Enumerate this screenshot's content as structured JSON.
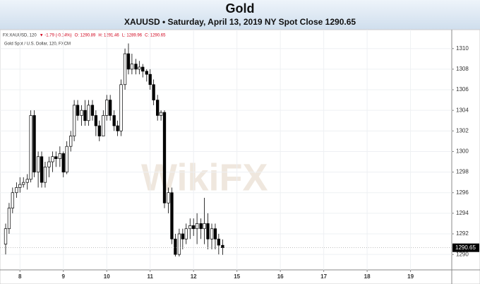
{
  "chart_data": {
    "type": "candlestick",
    "title": "Gold",
    "subtitle": "XAUUSD • Saturday, April 13, 2019 NY Spot Close 1290.65",
    "info": [
      "FX:XAUUSD, 120",
      "▼ -1.79 (-0.14%)",
      "O: 1290.89",
      "H: 1291.46",
      "L: 1289.96",
      "C: 1290.65"
    ],
    "legend": "Gold Spot / U.S. Dollar, 120, FXCM",
    "watermark": "WikiFX",
    "up_color": "#ffffff",
    "down_color": "#000000",
    "edge_color": "#000000",
    "grid": true,
    "last_price": 1290.65,
    "xlim": [
      -0.46,
      9.95
    ],
    "xticks": [
      {
        "value": 0,
        "label": "8"
      },
      {
        "value": 1,
        "label": "9"
      },
      {
        "value": 2,
        "label": "10"
      },
      {
        "value": 3,
        "label": "11"
      },
      {
        "value": 4,
        "label": "12"
      },
      {
        "value": 5,
        "label": "15"
      },
      {
        "value": 6,
        "label": "16"
      },
      {
        "value": 7,
        "label": "17"
      },
      {
        "value": 8,
        "label": "18"
      },
      {
        "value": 9,
        "label": "19"
      }
    ],
    "ylim": [
      1288.5,
      1311.7
    ],
    "yticks": [
      1290,
      1292,
      1294,
      1296,
      1298,
      1300,
      1302,
      1304,
      1306,
      1308,
      1310
    ],
    "x": [
      -0.33,
      -0.25,
      -0.17,
      -0.08,
      0,
      0.08,
      0.17,
      0.25,
      0.33,
      0.42,
      0.5,
      0.58,
      0.67,
      0.75,
      0.83,
      0.92,
      1,
      1.08,
      1.17,
      1.25,
      1.33,
      1.42,
      1.5,
      1.58,
      1.67,
      1.75,
      1.83,
      1.92,
      2,
      2.08,
      2.17,
      2.25,
      2.33,
      2.42,
      2.5,
      2.58,
      2.67,
      2.75,
      2.83,
      2.92,
      3,
      3.08,
      3.17,
      3.25,
      3.33,
      3.42,
      3.5,
      3.58,
      3.67,
      3.75,
      3.83,
      3.92,
      4,
      4.08,
      4.17,
      4.25,
      4.33,
      4.42,
      4.5,
      4.58,
      4.67
    ],
    "open": [
      1291,
      1292.5,
      1294.5,
      1296,
      1296.5,
      1296.8,
      1297,
      1297.3,
      1303.5,
      1298,
      1299.5,
      1297,
      1298.5,
      1299,
      1299.5,
      1299.3,
      1299.8,
      1298,
      1300.5,
      1301.5,
      1304.5,
      1303.5,
      1304,
      1303,
      1304.5,
      1303.5,
      1302.5,
      1301.5,
      1303.5,
      1305,
      1303.5,
      1302.5,
      1302,
      1306.5,
      1309.5,
      1308,
      1308.5,
      1308,
      1308.2,
      1307.8,
      1307.5,
      1306.5,
      1305,
      1303.5,
      1303.8,
      1295,
      1296,
      1291.5,
      1290,
      1292,
      1291.5,
      1292.5,
      1292.8,
      1292.5,
      1293,
      1292.5,
      1293,
      1291.5,
      1292.5,
      1291.5,
      1290.89
    ],
    "high": [
      1293,
      1295,
      1296.5,
      1297,
      1297.5,
      1297.5,
      1297.8,
      1304,
      1304,
      1300,
      1300,
      1299,
      1299.5,
      1300,
      1300,
      1300.5,
      1300,
      1301,
      1302,
      1305,
      1305,
      1304.5,
      1305,
      1305,
      1305,
      1304,
      1303,
      1304,
      1305.5,
      1305.5,
      1304,
      1303,
      1307,
      1310,
      1310.5,
      1309.5,
      1309,
      1308.8,
      1308.5,
      1308,
      1308,
      1307,
      1305.5,
      1304,
      1304,
      1296.5,
      1296.5,
      1292,
      1292.5,
      1292.5,
      1293,
      1293.5,
      1293.5,
      1294,
      1293.5,
      1295.5,
      1294,
      1293,
      1293,
      1292,
      1291.46
    ],
    "low": [
      1290,
      1292,
      1294,
      1295.5,
      1296,
      1296.5,
      1296.3,
      1297,
      1297.5,
      1296.5,
      1296.5,
      1296.5,
      1297.5,
      1298,
      1298.5,
      1298.5,
      1297.5,
      1297.8,
      1300,
      1301,
      1303,
      1302.5,
      1302.5,
      1302.5,
      1303,
      1301.5,
      1301,
      1301.5,
      1303,
      1303,
      1302,
      1301.5,
      1301.5,
      1306,
      1307.5,
      1307.5,
      1307.5,
      1307.5,
      1307.2,
      1306.8,
      1306,
      1304.5,
      1303,
      1303,
      1294.5,
      1294,
      1291,
      1289.8,
      1289.8,
      1290.5,
      1291,
      1291.5,
      1291.8,
      1291,
      1291.5,
      1291,
      1290.5,
      1290.5,
      1290.5,
      1290,
      1289.96
    ],
    "close": [
      1292.5,
      1294.5,
      1296,
      1296.5,
      1296.8,
      1297,
      1297.3,
      1303.5,
      1298,
      1299.5,
      1297,
      1298.5,
      1299,
      1299.5,
      1299.3,
      1299.8,
      1298,
      1300.5,
      1301.5,
      1304.5,
      1303.5,
      1304,
      1303,
      1304.5,
      1303.5,
      1302.5,
      1301.5,
      1303.5,
      1305,
      1303.5,
      1302.5,
      1302,
      1306.5,
      1309.5,
      1308,
      1308.5,
      1308,
      1308.2,
      1307.8,
      1307.5,
      1306.5,
      1305,
      1303.5,
      1303.8,
      1295,
      1296,
      1291.5,
      1290,
      1292,
      1291.5,
      1292.5,
      1292.8,
      1292.5,
      1293,
      1292.5,
      1293,
      1291.5,
      1292.5,
      1291.5,
      1290.9,
      1290.65
    ]
  }
}
